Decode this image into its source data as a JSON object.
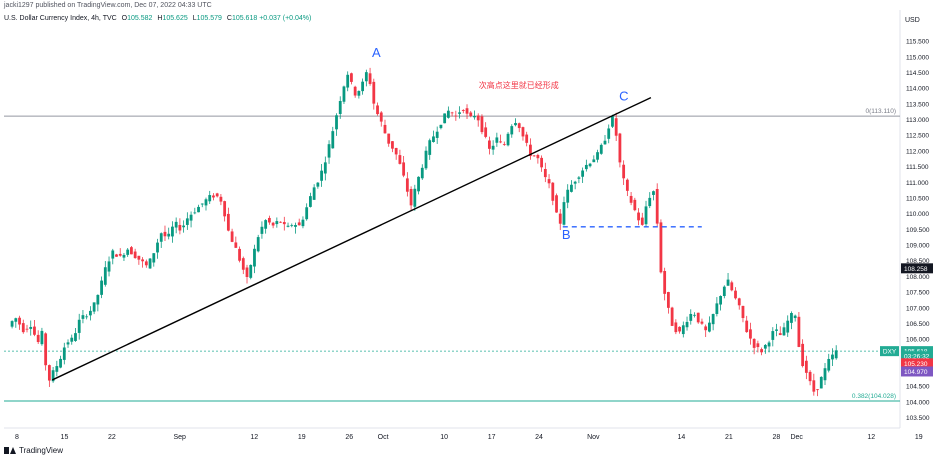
{
  "header": {
    "published": "jacki1297 published on TradingView.com, Dec 07, 2022 04:33 UTC"
  },
  "symbol": {
    "name": "U.S. Dollar Currency Index, 4h, TVC",
    "open": "105.582",
    "high": "105.625",
    "low": "105.579",
    "close": "105.618",
    "change": "+0.037 (+0.04%)"
  },
  "logo": {
    "text": "TradingView",
    "icon": "tradingview-logo-icon"
  },
  "colors": {
    "up": "#089981",
    "down": "#f23645",
    "trend": "#000000",
    "label": "#2962ff",
    "fib": "#22ab94",
    "annotation": "#f23645"
  },
  "chart_data": {
    "type": "candlestick",
    "currency": "USD",
    "ylim": [
      103.2,
      115.95
    ],
    "y_ticks": [
      "103.500",
      "104.000",
      "104.500",
      "105.000",
      "105.500",
      "106.000",
      "106.500",
      "107.000",
      "107.500",
      "108.000",
      "108.500",
      "109.000",
      "109.500",
      "110.000",
      "110.500",
      "111.000",
      "111.500",
      "112.000",
      "112.500",
      "113.000",
      "113.500",
      "114.000",
      "114.500",
      "115.000",
      "115.500"
    ],
    "x_ticks": [
      {
        "label": "8",
        "day": 0
      },
      {
        "label": "15",
        "day": 7
      },
      {
        "label": "22",
        "day": 14
      },
      {
        "label": "Sep",
        "day": 24
      },
      {
        "label": "12",
        "day": 35
      },
      {
        "label": "19",
        "day": 42
      },
      {
        "label": "26",
        "day": 49
      },
      {
        "label": "Oct",
        "day": 54
      },
      {
        "label": "10",
        "day": 63
      },
      {
        "label": "17",
        "day": 70
      },
      {
        "label": "24",
        "day": 77
      },
      {
        "label": "Nov",
        "day": 85
      },
      {
        "label": "14",
        "day": 98
      },
      {
        "label": "21",
        "day": 105
      },
      {
        "label": "28",
        "day": 112
      },
      {
        "label": "Dec",
        "day": 115
      },
      {
        "label": "12",
        "day": 126
      },
      {
        "label": "19",
        "day": 133
      }
    ],
    "x_start": "2022-08-08",
    "path": [
      [
        -1,
        106.4
      ],
      [
        0,
        106.7
      ],
      [
        1.2,
        106.3
      ],
      [
        2.5,
        106.5
      ],
      [
        3.2,
        105.8
      ],
      [
        4,
        106.2
      ],
      [
        4.8,
        104.6
      ],
      [
        5.5,
        104.9
      ],
      [
        6.5,
        105.3
      ],
      [
        7.5,
        105.9
      ],
      [
        8.5,
        106.0
      ],
      [
        9.5,
        106.6
      ],
      [
        10.5,
        106.8
      ],
      [
        11.5,
        107.0
      ],
      [
        12.5,
        107.6
      ],
      [
        13.5,
        108.4
      ],
      [
        14.5,
        108.8
      ],
      [
        15.5,
        108.6
      ],
      [
        16.5,
        108.9
      ],
      [
        17.5,
        108.7
      ],
      [
        18.5,
        108.5
      ],
      [
        19.5,
        108.3
      ],
      [
        20.5,
        108.8
      ],
      [
        21.5,
        109.4
      ],
      [
        22.5,
        109.2
      ],
      [
        23.5,
        109.7
      ],
      [
        24.5,
        109.5
      ],
      [
        25.5,
        109.9
      ],
      [
        26.5,
        110.1
      ],
      [
        27.5,
        110.3
      ],
      [
        28.5,
        110.5
      ],
      [
        29.5,
        110.6
      ],
      [
        30.5,
        110.4
      ],
      [
        31.5,
        109.4
      ],
      [
        32.5,
        108.9
      ],
      [
        33.5,
        108.3
      ],
      [
        34.2,
        107.9
      ],
      [
        35,
        108.6
      ],
      [
        36,
        109.4
      ],
      [
        37,
        109.8
      ],
      [
        38,
        109.6
      ],
      [
        39,
        109.8
      ],
      [
        40,
        109.5
      ],
      [
        41,
        109.7
      ],
      [
        42,
        109.6
      ],
      [
        43,
        110.2
      ],
      [
        44,
        110.8
      ],
      [
        45,
        111.2
      ],
      [
        46,
        111.9
      ],
      [
        47,
        112.8
      ],
      [
        48,
        113.7
      ],
      [
        49,
        114.5
      ],
      [
        49.5,
        114.2
      ],
      [
        50,
        113.8
      ],
      [
        51,
        114.0
      ],
      [
        52,
        114.6
      ],
      [
        52.5,
        114.0
      ],
      [
        53,
        113.4
      ],
      [
        54,
        112.9
      ],
      [
        55,
        112.3
      ],
      [
        56,
        112.0
      ],
      [
        57,
        111.4
      ],
      [
        58,
        110.6
      ],
      [
        58.5,
        110.2
      ],
      [
        59,
        110.8
      ],
      [
        60,
        111.5
      ],
      [
        61,
        112.2
      ],
      [
        62,
        112.6
      ],
      [
        63,
        113.0
      ],
      [
        64,
        113.3
      ],
      [
        65,
        113.1
      ],
      [
        66,
        113.4
      ],
      [
        67,
        113.0
      ],
      [
        68,
        113.2
      ],
      [
        69,
        112.6
      ],
      [
        70,
        112.0
      ],
      [
        71,
        112.4
      ],
      [
        72,
        112.1
      ],
      [
        73,
        112.8
      ],
      [
        74,
        113.0
      ],
      [
        75,
        112.4
      ],
      [
        76,
        111.9
      ],
      [
        77,
        111.8
      ],
      [
        78,
        111.2
      ],
      [
        79,
        110.8
      ],
      [
        80,
        109.8
      ],
      [
        80.5,
        109.7
      ],
      [
        81,
        110.5
      ],
      [
        82,
        110.9
      ],
      [
        83,
        111.2
      ],
      [
        84,
        111.5
      ],
      [
        85,
        111.7
      ],
      [
        86,
        111.9
      ],
      [
        87,
        112.4
      ],
      [
        88,
        113.1
      ],
      [
        88.5,
        112.8
      ],
      [
        89,
        111.8
      ],
      [
        90,
        110.8
      ],
      [
        91,
        110.3
      ],
      [
        92,
        109.8
      ],
      [
        92.5,
        109.6
      ],
      [
        93,
        110.2
      ],
      [
        94,
        110.8
      ],
      [
        94.5,
        110.5
      ],
      [
        95,
        108.5
      ],
      [
        96,
        107.2
      ],
      [
        97,
        106.4
      ],
      [
        98,
        106.2
      ],
      [
        99,
        106.6
      ],
      [
        100,
        106.9
      ],
      [
        101,
        106.5
      ],
      [
        102,
        106.2
      ],
      [
        103,
        106.8
      ],
      [
        104,
        107.4
      ],
      [
        105,
        107.9
      ],
      [
        106,
        107.4
      ],
      [
        107,
        106.9
      ],
      [
        108,
        106.2
      ],
      [
        109,
        105.8
      ],
      [
        110,
        105.6
      ],
      [
        111,
        105.9
      ],
      [
        112,
        106.3
      ],
      [
        113,
        106.1
      ],
      [
        114,
        106.6
      ],
      [
        115,
        106.9
      ],
      [
        115.5,
        105.9
      ],
      [
        116,
        105.3
      ],
      [
        117,
        104.8
      ],
      [
        117.5,
        104.4
      ],
      [
        118,
        104.3
      ],
      [
        119,
        104.8
      ],
      [
        120,
        105.3
      ],
      [
        121,
        105.6
      ]
    ],
    "trendline": {
      "from": [
        5.2,
        104.7
      ],
      "to": [
        93.5,
        113.7
      ]
    },
    "support_line": {
      "from": [
        80.5,
        109.58
      ],
      "to": [
        101,
        109.58
      ]
    },
    "resistance_level": {
      "value": 113.11,
      "label": "0(113.110)"
    },
    "fib_level": {
      "value": 104.028,
      "label": "0.382(104.028)"
    },
    "current_price_line": 105.618,
    "price_tags": [
      {
        "text": "108.258",
        "value": 108.258,
        "color": "#131722"
      },
      {
        "text": "DXY",
        "value": 105.618,
        "color": "#22ab94",
        "left": true
      },
      {
        "text": "105.618",
        "value": 105.618,
        "color": "#22ab94"
      },
      {
        "text": "03:26:32",
        "value": 105.52,
        "color": "#22ab94",
        "offset": 10
      },
      {
        "text": "105.230",
        "value": 105.23,
        "color": "#f23645"
      },
      {
        "text": "104.970",
        "value": 104.97,
        "color": "#7e57c2"
      }
    ],
    "labels": [
      {
        "text": "A",
        "day": 53,
        "value": 115.0
      },
      {
        "text": "B",
        "day": 81,
        "value": 109.2
      },
      {
        "text": "C",
        "day": 89.5,
        "value": 113.6
      }
    ],
    "annotation": {
      "text": "次高点这里就已经形成",
      "day": 74,
      "value": 114.0
    }
  }
}
